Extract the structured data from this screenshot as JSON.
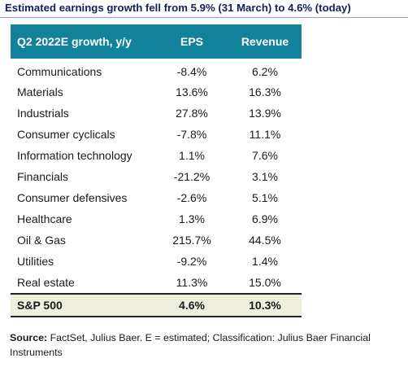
{
  "title": "Estimated earnings growth fell from 5.9% (31 March) to 4.6% (today)",
  "chart_data": {
    "type": "table",
    "columns": [
      "Q2 2022E growth, y/y",
      "EPS",
      "Revenue"
    ],
    "rows": [
      {
        "sector": "Communications",
        "eps": "-8.4%",
        "revenue": "6.2%"
      },
      {
        "sector": "Materials",
        "eps": "13.6%",
        "revenue": "16.3%"
      },
      {
        "sector": "Industrials",
        "eps": "27.8%",
        "revenue": "13.9%"
      },
      {
        "sector": "Consumer cyclicals",
        "eps": "-7.8%",
        "revenue": "11.1%"
      },
      {
        "sector": "Information technology",
        "eps": "1.1%",
        "revenue": "7.6%"
      },
      {
        "sector": "Financials",
        "eps": "-21.2%",
        "revenue": "3.1%"
      },
      {
        "sector": "Consumer defensives",
        "eps": "-2.6%",
        "revenue": "5.1%"
      },
      {
        "sector": "Healthcare",
        "eps": "1.3%",
        "revenue": "6.9%"
      },
      {
        "sector": "Oil & Gas",
        "eps": "215.7%",
        "revenue": "44.5%"
      },
      {
        "sector": "Utilities",
        "eps": "-9.2%",
        "revenue": "1.4%"
      },
      {
        "sector": "Real estate",
        "eps": "11.3%",
        "revenue": "15.0%"
      }
    ],
    "total": {
      "sector": "S&P 500",
      "eps": "4.6%",
      "revenue": "10.3%"
    }
  },
  "source": {
    "label": "Source:",
    "text": " FactSet, Julius Baer. E = estimated; Classification: Julius Baer Financial Instruments"
  },
  "colors": {
    "header_bg": "#12829a",
    "title_text": "#141e5a",
    "total_row_bg": "#efefde"
  }
}
